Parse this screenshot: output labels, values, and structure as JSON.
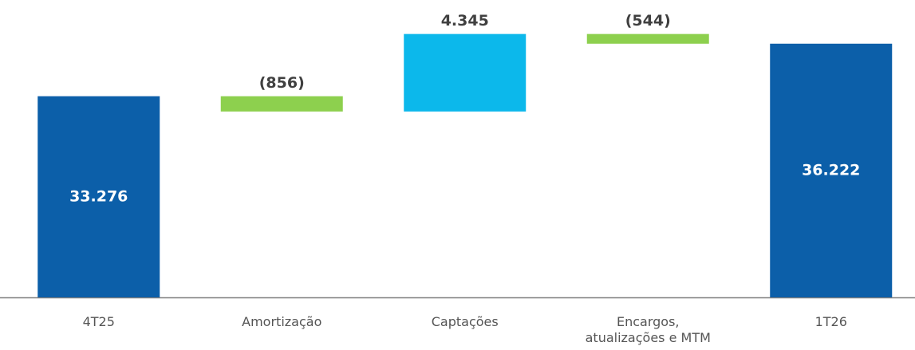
{
  "chart_data": {
    "type": "waterfall",
    "categories": [
      "4T25",
      "Amortização",
      "Captações",
      "Encargos, atualizações e MTM",
      "1T26"
    ],
    "values": [
      33276,
      -856,
      4345,
      -544,
      36222
    ],
    "value_labels": [
      "33.276",
      "(856)",
      "4.345",
      "(544)",
      "36.222"
    ],
    "measures": [
      "absolute",
      "relative",
      "relative",
      "relative",
      "total"
    ],
    "colors": [
      "#0c5fa9",
      "#8dd04e",
      "#0cb8eb",
      "#8dd04e",
      "#0c5fa9"
    ],
    "ylim": [
      22000,
      38000
    ]
  }
}
